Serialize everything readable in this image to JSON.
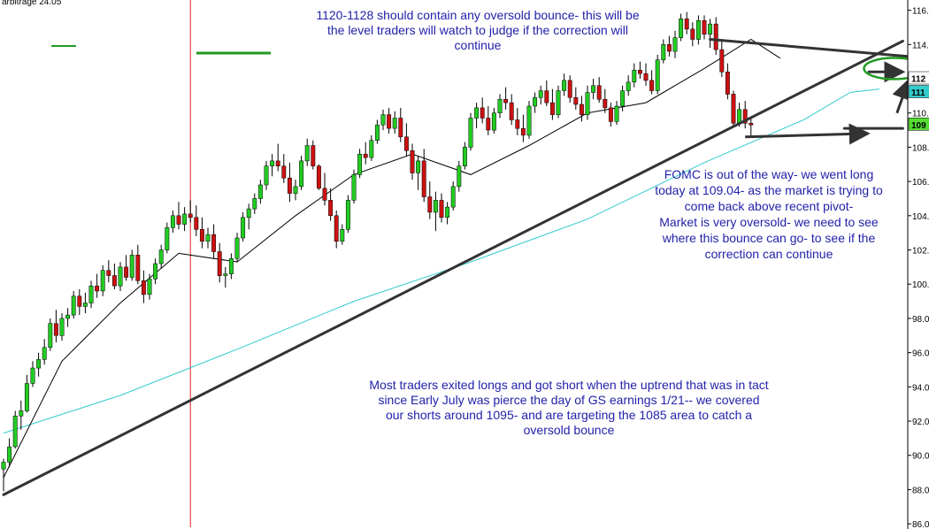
{
  "header": {
    "partial_label": "arbitrage 24.05"
  },
  "chart_data": {
    "type": "candlestick",
    "ylim": [
      85.8,
      116.6
    ],
    "y_ticks": [
      "86.0",
      "88.0",
      "90.0",
      "92.0",
      "94.0",
      "96.0",
      "98.0",
      "100.0",
      "102.0",
      "104.0",
      "106.0",
      "108.0",
      "110.0",
      "112.0",
      "114.0",
      "116.0"
    ],
    "price_tags": [
      {
        "label": "112",
        "value": 112.0,
        "color": "#ffffff"
      },
      {
        "label": "111",
        "value": 111.2,
        "color": "#33cccc"
      },
      {
        "label": "109",
        "value": 109.3,
        "color": "#55dd33"
      }
    ],
    "ohlc": [
      [
        89.2,
        89.8,
        87.9,
        89.6
      ],
      [
        89.6,
        91.0,
        89.3,
        90.5
      ],
      [
        90.5,
        92.6,
        90.4,
        92.3
      ],
      [
        92.3,
        93.2,
        91.5,
        92.6
      ],
      [
        92.6,
        94.7,
        92.5,
        94.2
      ],
      [
        94.2,
        95.5,
        94.0,
        95.1
      ],
      [
        95.1,
        96.0,
        94.6,
        95.6
      ],
      [
        95.6,
        96.8,
        95.3,
        96.3
      ],
      [
        96.3,
        98.0,
        96.1,
        97.7
      ],
      [
        97.7,
        98.5,
        96.6,
        97.0
      ],
      [
        97.0,
        98.3,
        96.7,
        98.0
      ],
      [
        98.0,
        98.6,
        97.5,
        98.2
      ],
      [
        98.2,
        99.6,
        98.0,
        99.3
      ],
      [
        99.3,
        99.7,
        98.2,
        98.7
      ],
      [
        98.7,
        99.5,
        98.3,
        98.9
      ],
      [
        98.9,
        100.2,
        98.6,
        99.9
      ],
      [
        99.9,
        100.6,
        99.2,
        99.6
      ],
      [
        99.6,
        101.1,
        99.3,
        100.8
      ],
      [
        100.8,
        101.4,
        100.1,
        100.5
      ],
      [
        100.5,
        101.2,
        99.7,
        99.9
      ],
      [
        99.9,
        101.3,
        99.6,
        101.0
      ],
      [
        101.0,
        101.7,
        100.2,
        100.4
      ],
      [
        100.4,
        102.0,
        100.2,
        101.7
      ],
      [
        101.7,
        102.3,
        100.0,
        100.2
      ],
      [
        100.2,
        100.8,
        98.9,
        99.4
      ],
      [
        99.4,
        100.6,
        99.1,
        100.3
      ],
      [
        100.3,
        101.5,
        100.0,
        101.2
      ],
      [
        101.2,
        102.3,
        100.9,
        102.0
      ],
      [
        102.0,
        103.6,
        101.8,
        103.3
      ],
      [
        103.3,
        104.3,
        103.0,
        104.0
      ],
      [
        104.0,
        104.8,
        103.2,
        103.5
      ],
      [
        103.5,
        104.5,
        103.1,
        104.1
      ],
      [
        104.1,
        104.9,
        103.6,
        103.9
      ],
      [
        103.9,
        104.6,
        102.8,
        103.2
      ],
      [
        103.2,
        103.9,
        102.1,
        102.5
      ],
      [
        102.5,
        103.3,
        102.1,
        102.9
      ],
      [
        102.9,
        103.5,
        101.5,
        101.9
      ],
      [
        101.9,
        102.4,
        100.1,
        100.5
      ],
      [
        100.5,
        101.0,
        99.8,
        100.6
      ],
      [
        100.6,
        101.8,
        100.3,
        101.5
      ],
      [
        101.5,
        103.0,
        101.3,
        102.7
      ],
      [
        102.7,
        104.2,
        102.5,
        103.9
      ],
      [
        103.9,
        104.7,
        103.2,
        104.4
      ],
      [
        104.4,
        105.3,
        104.1,
        105.0
      ],
      [
        105.0,
        106.1,
        104.7,
        105.8
      ],
      [
        105.8,
        107.2,
        105.5,
        106.9
      ],
      [
        106.9,
        107.6,
        106.3,
        107.2
      ],
      [
        107.2,
        108.2,
        106.6,
        106.9
      ],
      [
        106.9,
        107.6,
        105.9,
        106.2
      ],
      [
        106.2,
        107.1,
        104.8,
        105.3
      ],
      [
        105.3,
        106.1,
        104.9,
        105.7
      ],
      [
        105.7,
        107.5,
        105.5,
        107.2
      ],
      [
        107.2,
        108.5,
        106.9,
        108.1
      ],
      [
        108.1,
        108.4,
        106.7,
        106.9
      ],
      [
        106.9,
        107.0,
        105.5,
        105.6
      ],
      [
        105.6,
        106.5,
        104.6,
        104.9
      ],
      [
        104.9,
        105.6,
        103.7,
        104.0
      ],
      [
        104.0,
        104.3,
        102.1,
        102.5
      ],
      [
        102.5,
        103.5,
        102.3,
        103.2
      ],
      [
        103.2,
        105.2,
        103.0,
        104.9
      ],
      [
        104.9,
        106.7,
        104.7,
        106.4
      ],
      [
        106.4,
        107.9,
        106.2,
        107.6
      ],
      [
        107.6,
        108.3,
        107.0,
        107.4
      ],
      [
        107.4,
        108.7,
        107.2,
        108.4
      ],
      [
        108.4,
        109.6,
        108.2,
        109.3
      ],
      [
        109.3,
        110.2,
        109.0,
        109.9
      ],
      [
        109.9,
        110.3,
        108.8,
        109.1
      ],
      [
        109.1,
        110.1,
        108.8,
        109.7
      ],
      [
        109.7,
        110.3,
        108.3,
        108.6
      ],
      [
        108.6,
        109.4,
        107.5,
        107.8
      ],
      [
        107.8,
        108.2,
        106.1,
        106.5
      ],
      [
        106.5,
        107.5,
        105.5,
        107.2
      ],
      [
        107.2,
        107.9,
        104.8,
        105.1
      ],
      [
        105.1,
        106.0,
        103.8,
        104.2
      ],
      [
        104.2,
        105.4,
        103.1,
        104.9
      ],
      [
        104.9,
        105.3,
        103.6,
        103.9
      ],
      [
        103.9,
        104.8,
        103.5,
        104.5
      ],
      [
        104.5,
        106.0,
        104.3,
        105.7
      ],
      [
        105.7,
        107.2,
        105.4,
        106.9
      ],
      [
        106.9,
        108.3,
        106.7,
        108.0
      ],
      [
        108.0,
        110.0,
        107.8,
        109.7
      ],
      [
        109.7,
        110.6,
        109.1,
        110.3
      ],
      [
        110.3,
        110.9,
        109.4,
        109.7
      ],
      [
        109.7,
        110.4,
        108.7,
        109.0
      ],
      [
        109.0,
        110.3,
        108.8,
        110.0
      ],
      [
        110.0,
        111.1,
        109.7,
        110.8
      ],
      [
        110.8,
        111.5,
        110.2,
        110.6
      ],
      [
        110.6,
        111.1,
        109.3,
        109.6
      ],
      [
        109.6,
        110.3,
        108.7,
        109.1
      ],
      [
        109.1,
        109.9,
        108.3,
        108.7
      ],
      [
        108.7,
        110.7,
        108.5,
        110.4
      ],
      [
        110.4,
        111.2,
        110.0,
        110.9
      ],
      [
        110.9,
        111.6,
        110.5,
        111.3
      ],
      [
        111.3,
        111.9,
        110.4,
        110.6
      ],
      [
        110.6,
        111.4,
        109.6,
        109.9
      ],
      [
        109.9,
        111.6,
        109.7,
        111.3
      ],
      [
        111.3,
        112.3,
        111.0,
        111.9
      ],
      [
        111.9,
        112.2,
        110.6,
        110.9
      ],
      [
        110.9,
        111.5,
        110.2,
        110.5
      ],
      [
        110.5,
        111.0,
        109.5,
        109.9
      ],
      [
        109.9,
        111.6,
        109.6,
        111.2
      ],
      [
        111.2,
        112.0,
        110.8,
        111.6
      ],
      [
        111.6,
        112.1,
        110.6,
        110.8
      ],
      [
        110.8,
        111.4,
        110.0,
        110.3
      ],
      [
        110.3,
        110.6,
        109.2,
        109.5
      ],
      [
        109.5,
        110.7,
        109.3,
        110.4
      ],
      [
        110.4,
        111.6,
        110.1,
        111.3
      ],
      [
        111.3,
        112.2,
        111.0,
        111.8
      ],
      [
        111.8,
        112.9,
        111.5,
        112.5
      ],
      [
        112.5,
        113.0,
        112.0,
        112.3
      ],
      [
        112.3,
        112.9,
        111.6,
        111.9
      ],
      [
        111.9,
        112.5,
        111.1,
        111.3
      ],
      [
        111.3,
        113.4,
        111.1,
        113.1
      ],
      [
        113.1,
        114.3,
        112.9,
        114.0
      ],
      [
        114.0,
        114.5,
        113.3,
        113.6
      ],
      [
        113.6,
        114.8,
        113.2,
        114.4
      ],
      [
        114.4,
        115.8,
        114.2,
        115.5
      ],
      [
        115.5,
        115.9,
        114.6,
        114.9
      ],
      [
        114.9,
        115.3,
        113.9,
        114.3
      ],
      [
        114.3,
        115.7,
        114.0,
        115.4
      ],
      [
        115.4,
        115.7,
        114.3,
        114.6
      ],
      [
        114.6,
        115.5,
        113.8,
        115.2
      ],
      [
        115.2,
        115.6,
        113.4,
        113.7
      ],
      [
        113.7,
        114.2,
        112.1,
        112.4
      ],
      [
        112.4,
        112.9,
        110.8,
        111.1
      ],
      [
        111.1,
        111.3,
        109.2,
        109.4
      ],
      [
        109.4,
        110.6,
        109.2,
        110.2
      ],
      [
        110.2,
        110.7,
        109.1,
        109.4
      ],
      [
        109.4,
        109.8,
        108.6,
        109.3
      ]
    ],
    "sma_short": [
      [
        0,
        88.7
      ],
      [
        10,
        95.5
      ],
      [
        20,
        98.9
      ],
      [
        30,
        101.8
      ],
      [
        40,
        101.3
      ],
      [
        50,
        104.0
      ],
      [
        60,
        106.4
      ],
      [
        70,
        107.6
      ],
      [
        80,
        106.4
      ],
      [
        90,
        108.1
      ],
      [
        100,
        110.0
      ],
      [
        110,
        110.6
      ],
      [
        120,
        112.6
      ],
      [
        128,
        114.3
      ],
      [
        133,
        113.2
      ]
    ],
    "sma_long": [
      [
        0,
        91.3
      ],
      [
        20,
        93.5
      ],
      [
        40,
        96.2
      ],
      [
        60,
        99.0
      ],
      [
        80,
        101.3
      ],
      [
        100,
        103.8
      ],
      [
        120,
        107.1
      ],
      [
        137,
        109.6
      ],
      [
        145,
        111.2
      ],
      [
        150,
        111.4
      ]
    ],
    "trendlines": [
      {
        "from": [
          0,
          87.7
        ],
        "to": [
          154,
          114.2
        ]
      },
      {
        "from": [
          121,
          114.3
        ],
        "to": [
          155,
          113.3
        ]
      },
      {
        "from": [
          144,
          109.1
        ],
        "to": [
          154,
          109.1
        ]
      }
    ],
    "arrows": [
      {
        "from": [
          127,
          108.6
        ],
        "to": [
          148,
          108.8
        ]
      },
      {
        "from": [
          148,
          112.4
        ],
        "to": [
          154,
          112.4
        ]
      },
      {
        "from": [
          153,
          110.0
        ],
        "to": [
          155,
          111.9
        ]
      }
    ],
    "ellipse_center": [
      152.5,
      112.6
    ],
    "vertical_marker_index": 32,
    "annotations": [
      {
        "lines": [
          "1120-1128 should contain any oversold bounce- this will be",
          "the level traders will watch to judge if the correction will",
          "continue"
        ]
      },
      {
        "lines": [
          "FOMC is out of the way- we went long",
          "today at 109.04- as the market is trying to",
          "come back above recent pivot-",
          "Market is very oversold-  we need to see",
          "where this bounce can go- to see if the",
          "correction can continue"
        ]
      },
      {
        "lines": [
          "Most traders exited longs and got short when the uptrend that was in tact",
          "since Early July was pierce the day of GS earnings 1/21-- we covered",
          "our shorts around 1095- and are targeting the 1085 area to catch a",
          "oversold bounce"
        ]
      }
    ],
    "colors": {
      "up": "#22cc22",
      "down": "#cc1111",
      "wick": "#000000",
      "sma_short": "#000000",
      "sma_long": "#33cccc",
      "trend": "#333333",
      "ellipse": "#229922",
      "annotation": "#2222aa",
      "vline": "#dd2222"
    }
  }
}
